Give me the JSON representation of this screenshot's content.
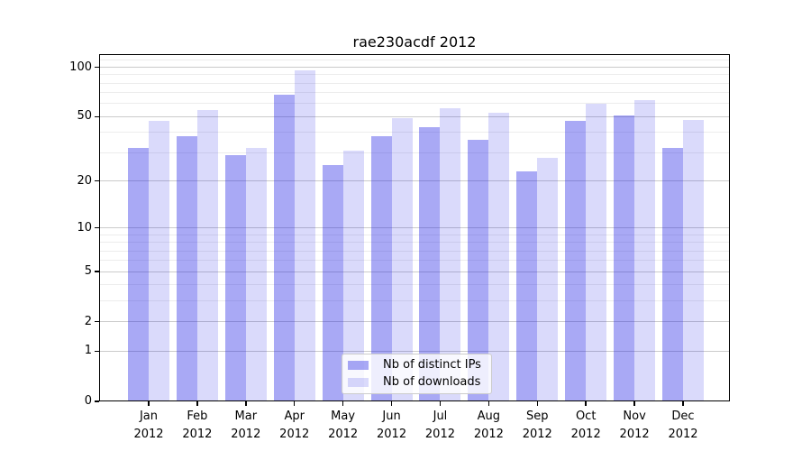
{
  "title": "rae230acdf 2012",
  "chart_data": {
    "type": "bar",
    "title": "rae230acdf 2012",
    "categories": [
      "Jan 2012",
      "Feb 2012",
      "Mar 2012",
      "Apr 2012",
      "May 2012",
      "Jun 2012",
      "Jul 2012",
      "Aug 2012",
      "Sep 2012",
      "Oct 2012",
      "Nov 2012",
      "Dec 2012"
    ],
    "x_labels": [
      {
        "line1": "Jan",
        "line2": "2012"
      },
      {
        "line1": "Feb",
        "line2": "2012"
      },
      {
        "line1": "Mar",
        "line2": "2012"
      },
      {
        "line1": "Apr",
        "line2": "2012"
      },
      {
        "line1": "May",
        "line2": "2012"
      },
      {
        "line1": "Jun",
        "line2": "2012"
      },
      {
        "line1": "Jul",
        "line2": "2012"
      },
      {
        "line1": "Aug",
        "line2": "2012"
      },
      {
        "line1": "Sep",
        "line2": "2012"
      },
      {
        "line1": "Oct",
        "line2": "2012"
      },
      {
        "line1": "Nov",
        "line2": "2012"
      },
      {
        "line1": "Dec",
        "line2": "2012"
      }
    ],
    "series": [
      {
        "name": "Nb of distinct IPs",
        "color": "#a8a8f5",
        "color_rgba": "rgba(30,30,228,0.38)",
        "values": [
          32,
          38,
          29,
          68,
          25,
          38,
          43,
          36,
          23,
          47,
          51,
          32
        ]
      },
      {
        "name": "Nb of downloads",
        "color": "#d9d9f9",
        "color_rgba": "rgba(30,30,228,0.165)",
        "values": [
          47,
          55,
          32,
          96,
          31,
          49,
          56,
          53,
          28,
          60,
          63,
          48
        ]
      }
    ],
    "yscale": "log1p",
    "ylim": [
      0,
      120
    ],
    "yticks": [
      0,
      1,
      2,
      5,
      10,
      20,
      50,
      100
    ],
    "ytick_labels": [
      "0",
      "1",
      "2",
      "5",
      "10",
      "20",
      "50",
      "100"
    ],
    "yticks_minor": [
      3,
      4,
      6,
      7,
      8,
      9,
      30,
      40,
      60,
      70,
      80,
      90,
      110
    ],
    "grid": "y",
    "legend_position": "lower center"
  },
  "colors": {
    "background": "#ffffff",
    "axis": "#000000",
    "text": "#000000",
    "grid_major": "#cbcbcb",
    "grid_minor": "#ececec",
    "legend_border": "#cccccc",
    "legend_background": "rgba(255,255,255,0.8)"
  }
}
